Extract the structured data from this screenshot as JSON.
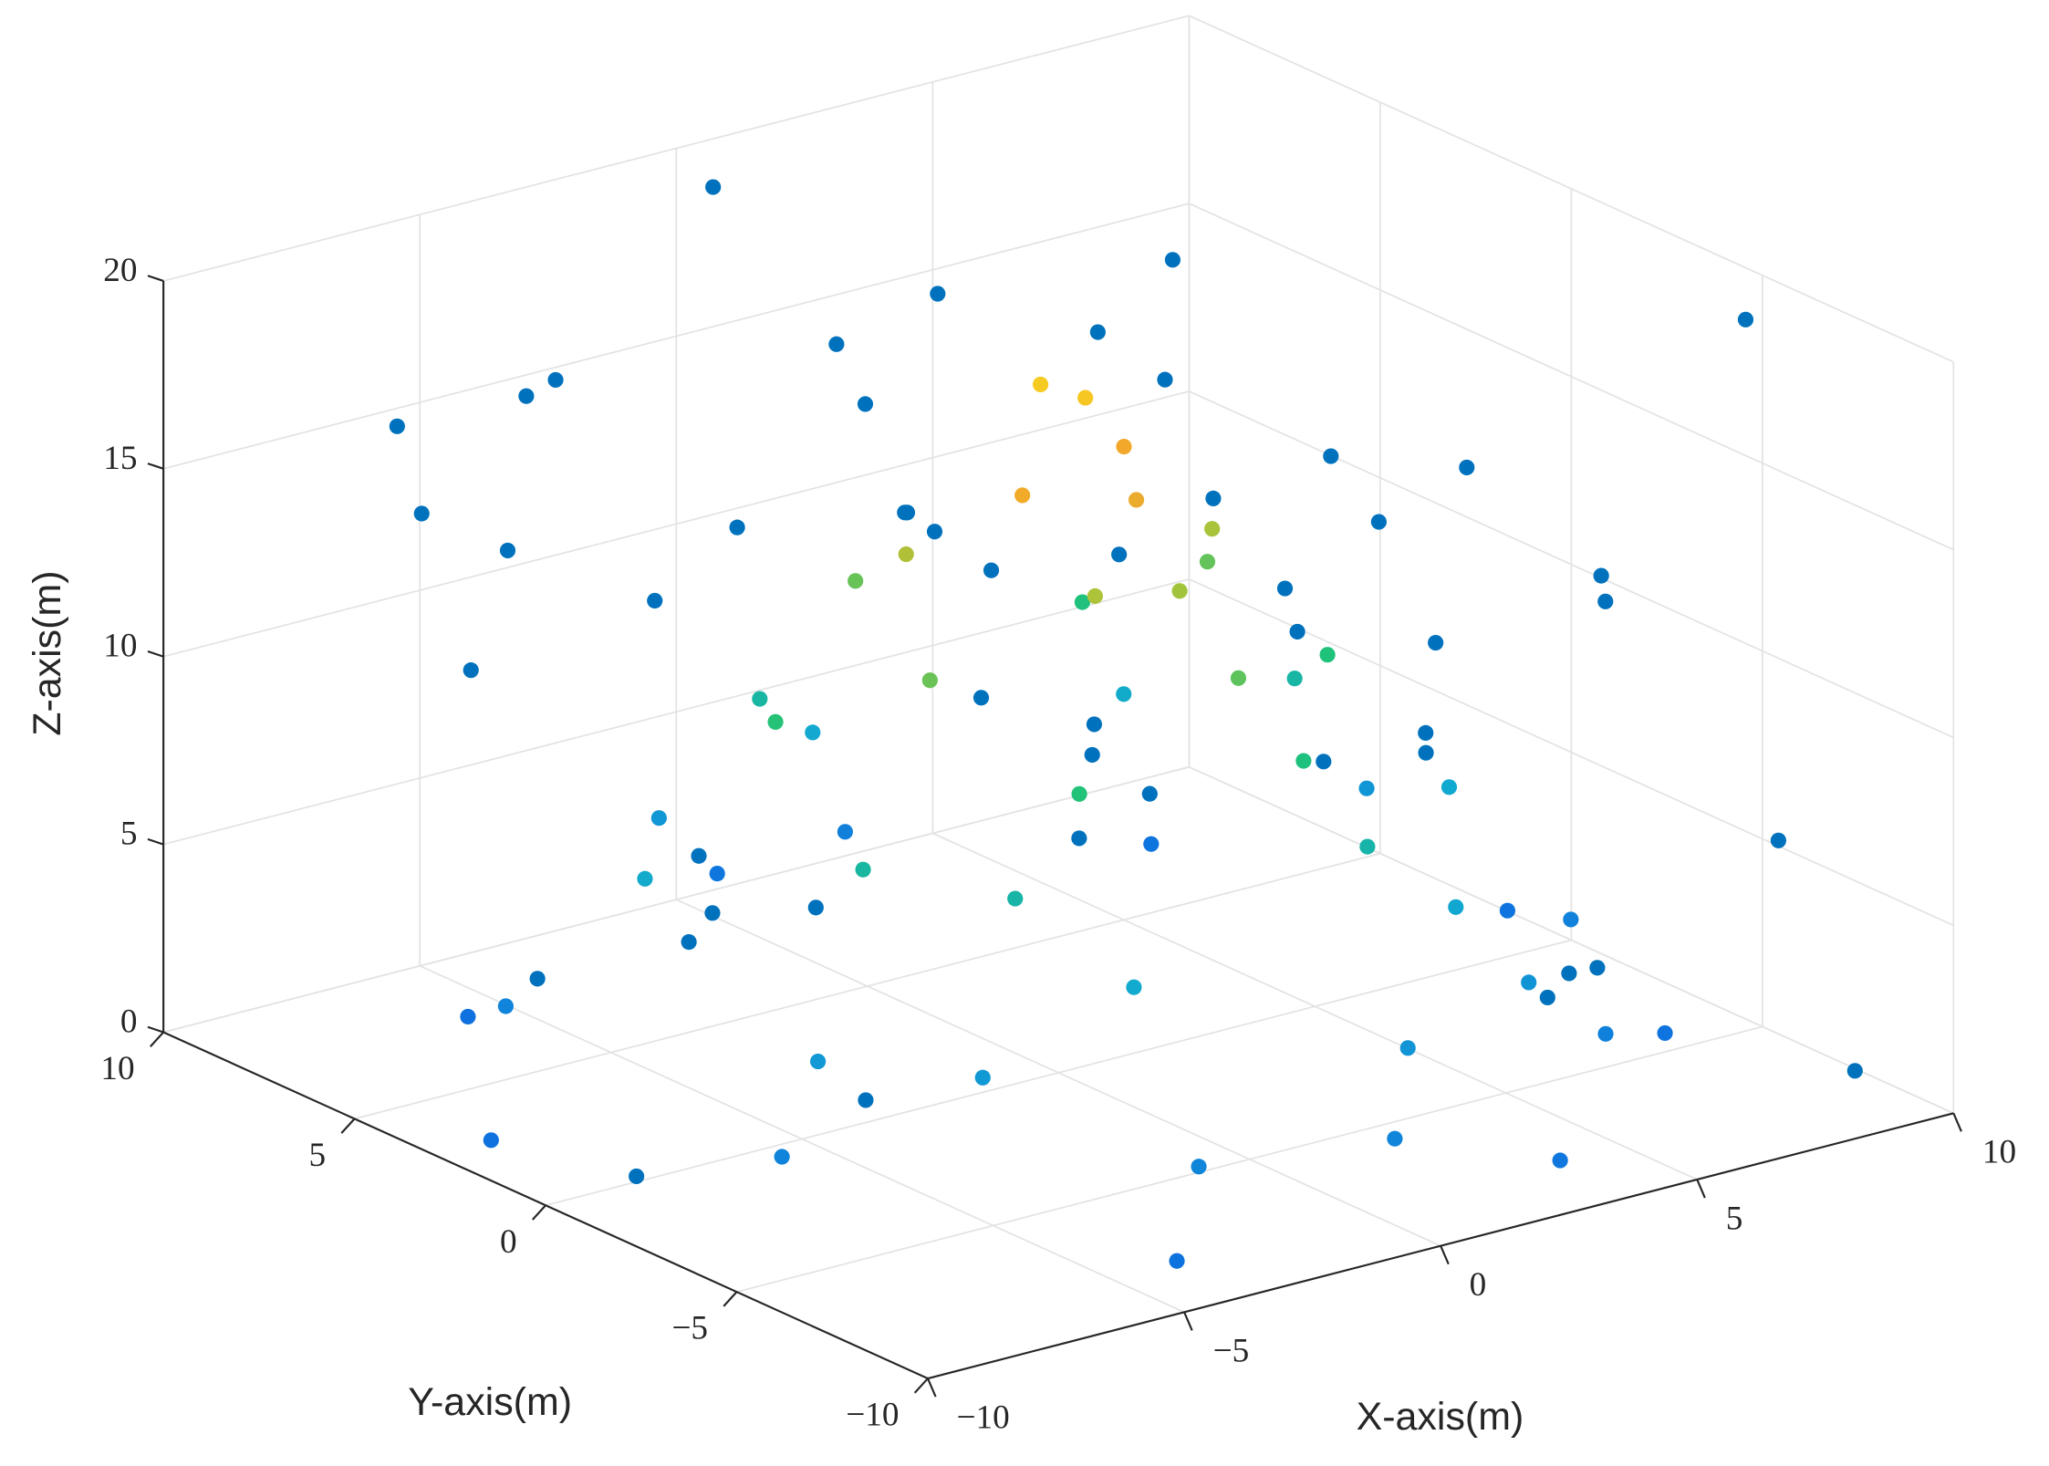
{
  "chart_data": {
    "type": "scatter3d",
    "xlabel": "X-axis(m)",
    "ylabel": "Y-axis(m)",
    "zlabel": "Z-axis(m)",
    "xlim": [
      -10,
      10
    ],
    "ylim": [
      -10,
      10
    ],
    "zlim": [
      0,
      20
    ],
    "xticks": [
      {
        "value": -10,
        "label": "−10"
      },
      {
        "value": -5,
        "label": "−5"
      },
      0,
      5,
      10
    ],
    "yticks": [
      {
        "value": -10,
        "label": "−10"
      },
      {
        "value": -5,
        "label": "−5"
      },
      0,
      5,
      10
    ],
    "zticks": [
      0,
      5,
      10,
      15,
      20
    ],
    "grid": true,
    "series": [
      {
        "color": "#0072bd",
        "x": [
          -8.2,
          3.5,
          7.1,
          -4.6,
          9.3,
          -1.2,
          5.8,
          -9.5,
          0.7,
          -6.3,
          2.9,
          8.6,
          -3.1,
          6.4,
          -7.7,
          1.8,
          -0.4,
          4.2,
          -5.9,
          9.8,
          -2.5,
          7.9,
          -8.9,
          3.1,
          0.2,
          -6.8,
          5.2,
          -3.7,
          8.3,
          -9.1,
          1.4,
          6.9,
          -1.9,
          4.8,
          -7.2,
          2.3,
          9.1,
          -4.3,
          0.9,
          -8.5,
          6.1,
          -2.8,
          3.8,
          -5.1,
          7.4,
          -0.8,
          9.6,
          -6.6,
          2.6,
          -3.4
        ],
        "y": [
          6.3,
          -8.1,
          2.4,
          9.2,
          -5.5,
          7.8,
          -2.9,
          -6.4,
          4.1,
          0.6,
          9.7,
          -9.3,
          -4.7,
          5.6,
          3.3,
          -7.2,
          8.5,
          -1.3,
          -8.8,
          6.9,
          1.7,
          -3.6,
          -0.9,
          7.4,
          -9.6,
          4.8,
          9.0,
          -5.9,
          -7.7,
          2.2,
          5.9,
          -4.1,
          -6.6,
          8.2,
          7.0,
          0.3,
          -2.1,
          3.9,
          -8.4,
          -3.0,
          6.6,
          9.4,
          -9.0,
          -1.8,
          8.9,
          -7.0,
          4.5,
          -4.9,
          1.1,
          6.0
        ],
        "z": [
          17.2,
          4.5,
          12.8,
          8.1,
          19.3,
          2.6,
          15.4,
          10.7,
          18.6,
          6.2,
          13.9,
          1.3,
          9.5,
          16.8,
          3.7,
          11.2,
          19.8,
          7.4,
          14.6,
          5.1,
          17.9,
          12.1,
          0.8,
          9.9,
          15.8,
          18.2,
          4.0,
          13.3,
          6.8,
          16.1,
          11.7,
          2.1,
          19.0,
          7.9,
          14.2,
          17.5,
          10.3,
          3.2,
          12.6,
          18.9,
          8.6,
          15.1,
          5.6,
          1.9,
          13.0,
          16.4,
          9.2,
          19.5,
          6.0,
          11.0
        ]
      },
      {
        "colormap": "parula",
        "x": [
          9.5,
          -9.2,
          3.0,
          -4.1,
          6.8,
          -6.0,
          0.5,
          8.1,
          8.5,
          -8.0,
          2.1,
          -3.3,
          5.9,
          -7.2,
          0.0,
          7.5,
          -7.0,
          4.4,
          -2.2,
          1.0,
          -5.5,
          6.5,
          -6.2,
          3.5,
          -3.0,
          0.2,
          4.7,
          5.5,
          -5.3,
          2.0,
          -1.8,
          -3.9,
          4.5,
          -4.4,
          1.5,
          -2.5,
          3.0,
          3.5,
          -3.4,
          0.9,
          -1.5,
          2.4,
          -2.3,
          0.5,
          -1.0,
          1.5,
          -1.3,
          0.4,
          0.3,
          -0.2
        ],
        "y": [
          1.0,
          2.5,
          -9.1,
          -8.6,
          6.7,
          7.4,
          9.6,
          -5.0,
          -2.0,
          -3.5,
          8.4,
          -8.1,
          -6.4,
          4.8,
          -8.8,
          2.0,
          -3.1,
          -6.4,
          7.5,
          -7.8,
          -5.4,
          -1.5,
          2.5,
          -5.7,
          -6.0,
          6.7,
          4.6,
          1.2,
          -2.0,
          -5.4,
          5.4,
          -4.1,
          -1.0,
          1.5,
          -4.4,
          -3.9,
          3.4,
          0.8,
          -1.2,
          -3.5,
          3.3,
          -0.8,
          0.9,
          -2.5,
          -2.3,
          0.3,
          -0.8,
          -1.5,
          -0.3,
          0.2
        ],
        "z": [
          0.5,
          0.3,
          0.8,
          0.4,
          0.6,
          0.2,
          0.7,
          0.5,
          2.0,
          2.2,
          1.8,
          2.4,
          1.9,
          2.1,
          2.3,
          4.0,
          4.2,
          3.8,
          4.1,
          3.9,
          4.3,
          6.0,
          6.2,
          5.8,
          6.1,
          5.9,
          6.3,
          8.0,
          8.2,
          7.8,
          8.1,
          7.9,
          10.0,
          10.2,
          9.8,
          10.1,
          9.9,
          12.0,
          12.2,
          11.8,
          12.1,
          14.0,
          14.2,
          13.8,
          14.1,
          16.0,
          16.2,
          15.8,
          18.0,
          18.3
        ]
      }
    ]
  }
}
